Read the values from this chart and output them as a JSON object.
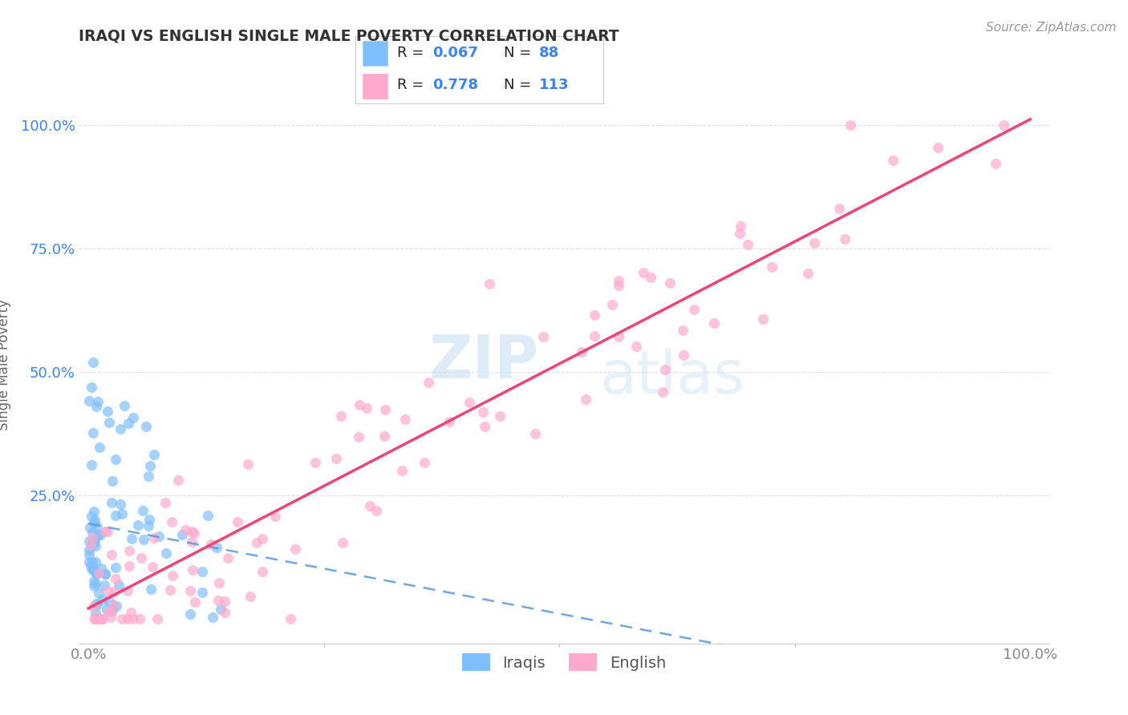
{
  "title": "IRAQI VS ENGLISH SINGLE MALE POVERTY CORRELATION CHART",
  "source_text": "Source: ZipAtlas.com",
  "ylabel": "Single Male Poverty",
  "iraqis_R": 0.067,
  "iraqis_N": 88,
  "english_R": 0.778,
  "english_N": 113,
  "iraqis_color": "#7fbfff",
  "english_color": "#ffaacc",
  "iraqis_line_color": "#5599dd",
  "english_line_color": "#ee4477",
  "background_color": "#ffffff",
  "grid_color": "#dddddd",
  "title_color": "#333333",
  "value_color": "#3b82f6",
  "ytick_color": "#3b82f6",
  "xtick_color": "#888888",
  "ylabel_color": "#666666"
}
